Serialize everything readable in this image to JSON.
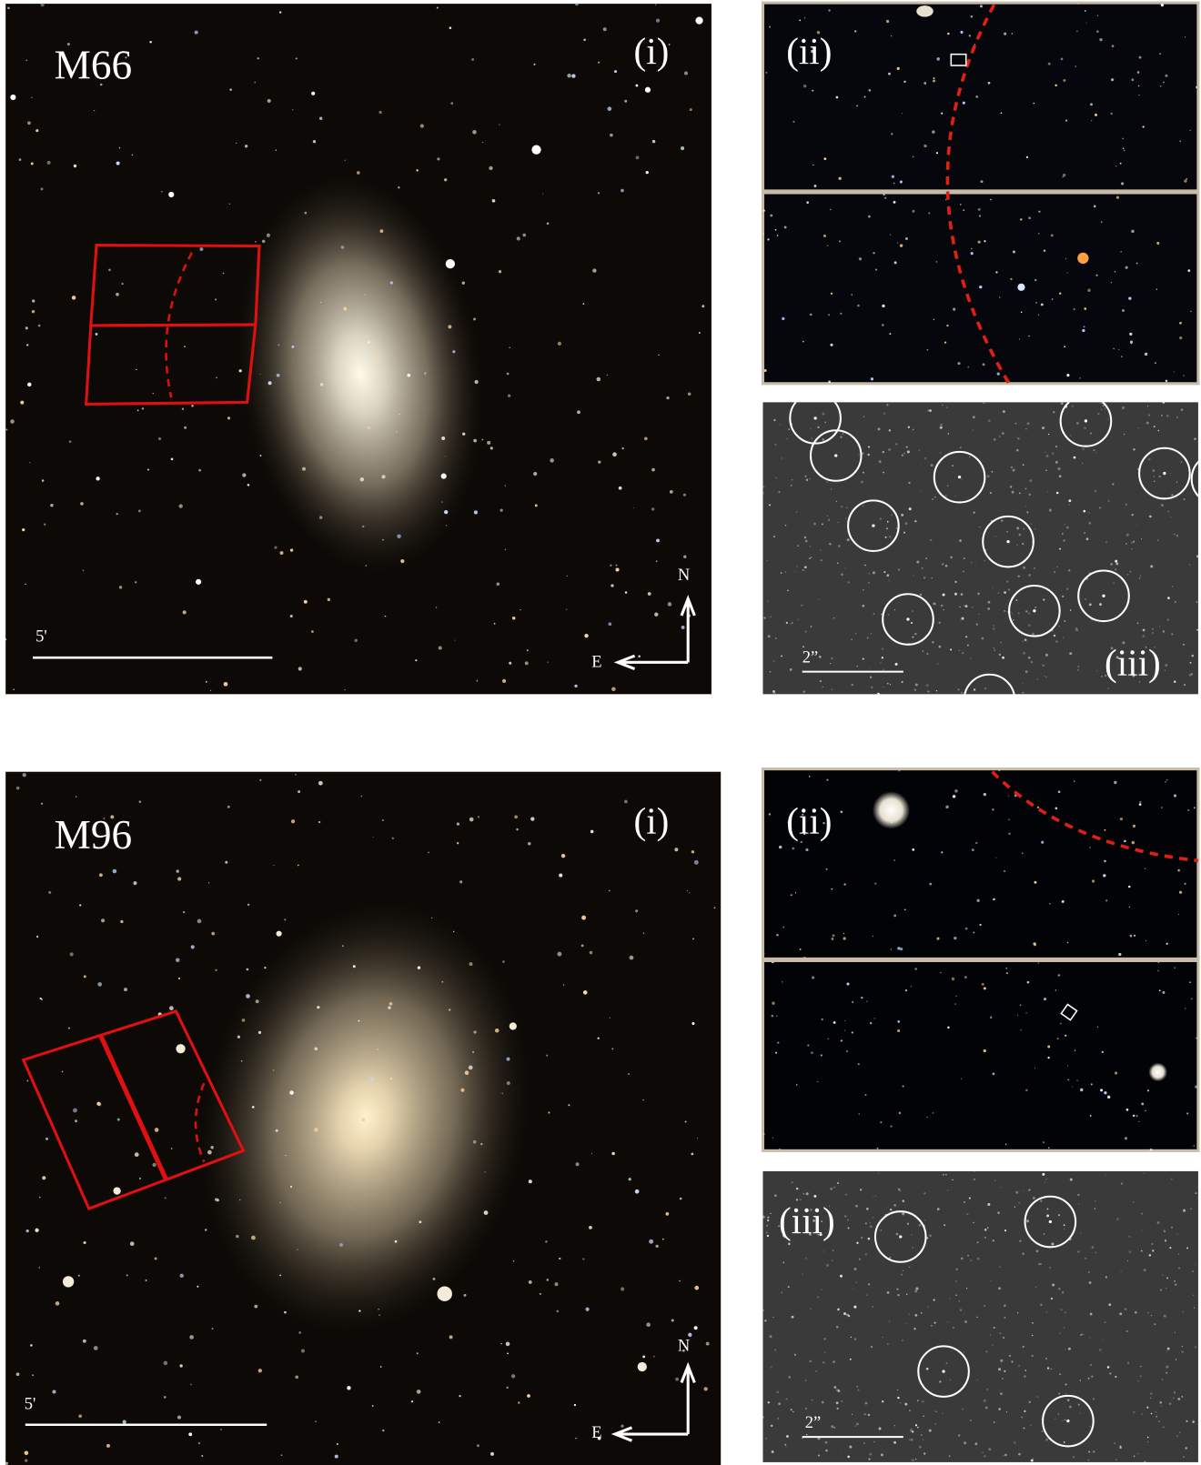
{
  "panels": [
    {
      "galaxy": "M66",
      "main_label": "(i)",
      "zoom_label": "(ii)",
      "detail_label": "(iii)",
      "scale_main": "5'",
      "north": "N",
      "east": "E",
      "scale_detail": "2”"
    },
    {
      "galaxy": "M96",
      "main_label": "(i)",
      "zoom_label": "(ii)",
      "detail_label": "(iii)",
      "scale_main": "5'",
      "north": "N",
      "east": "E",
      "scale_detail": "2”"
    }
  ]
}
